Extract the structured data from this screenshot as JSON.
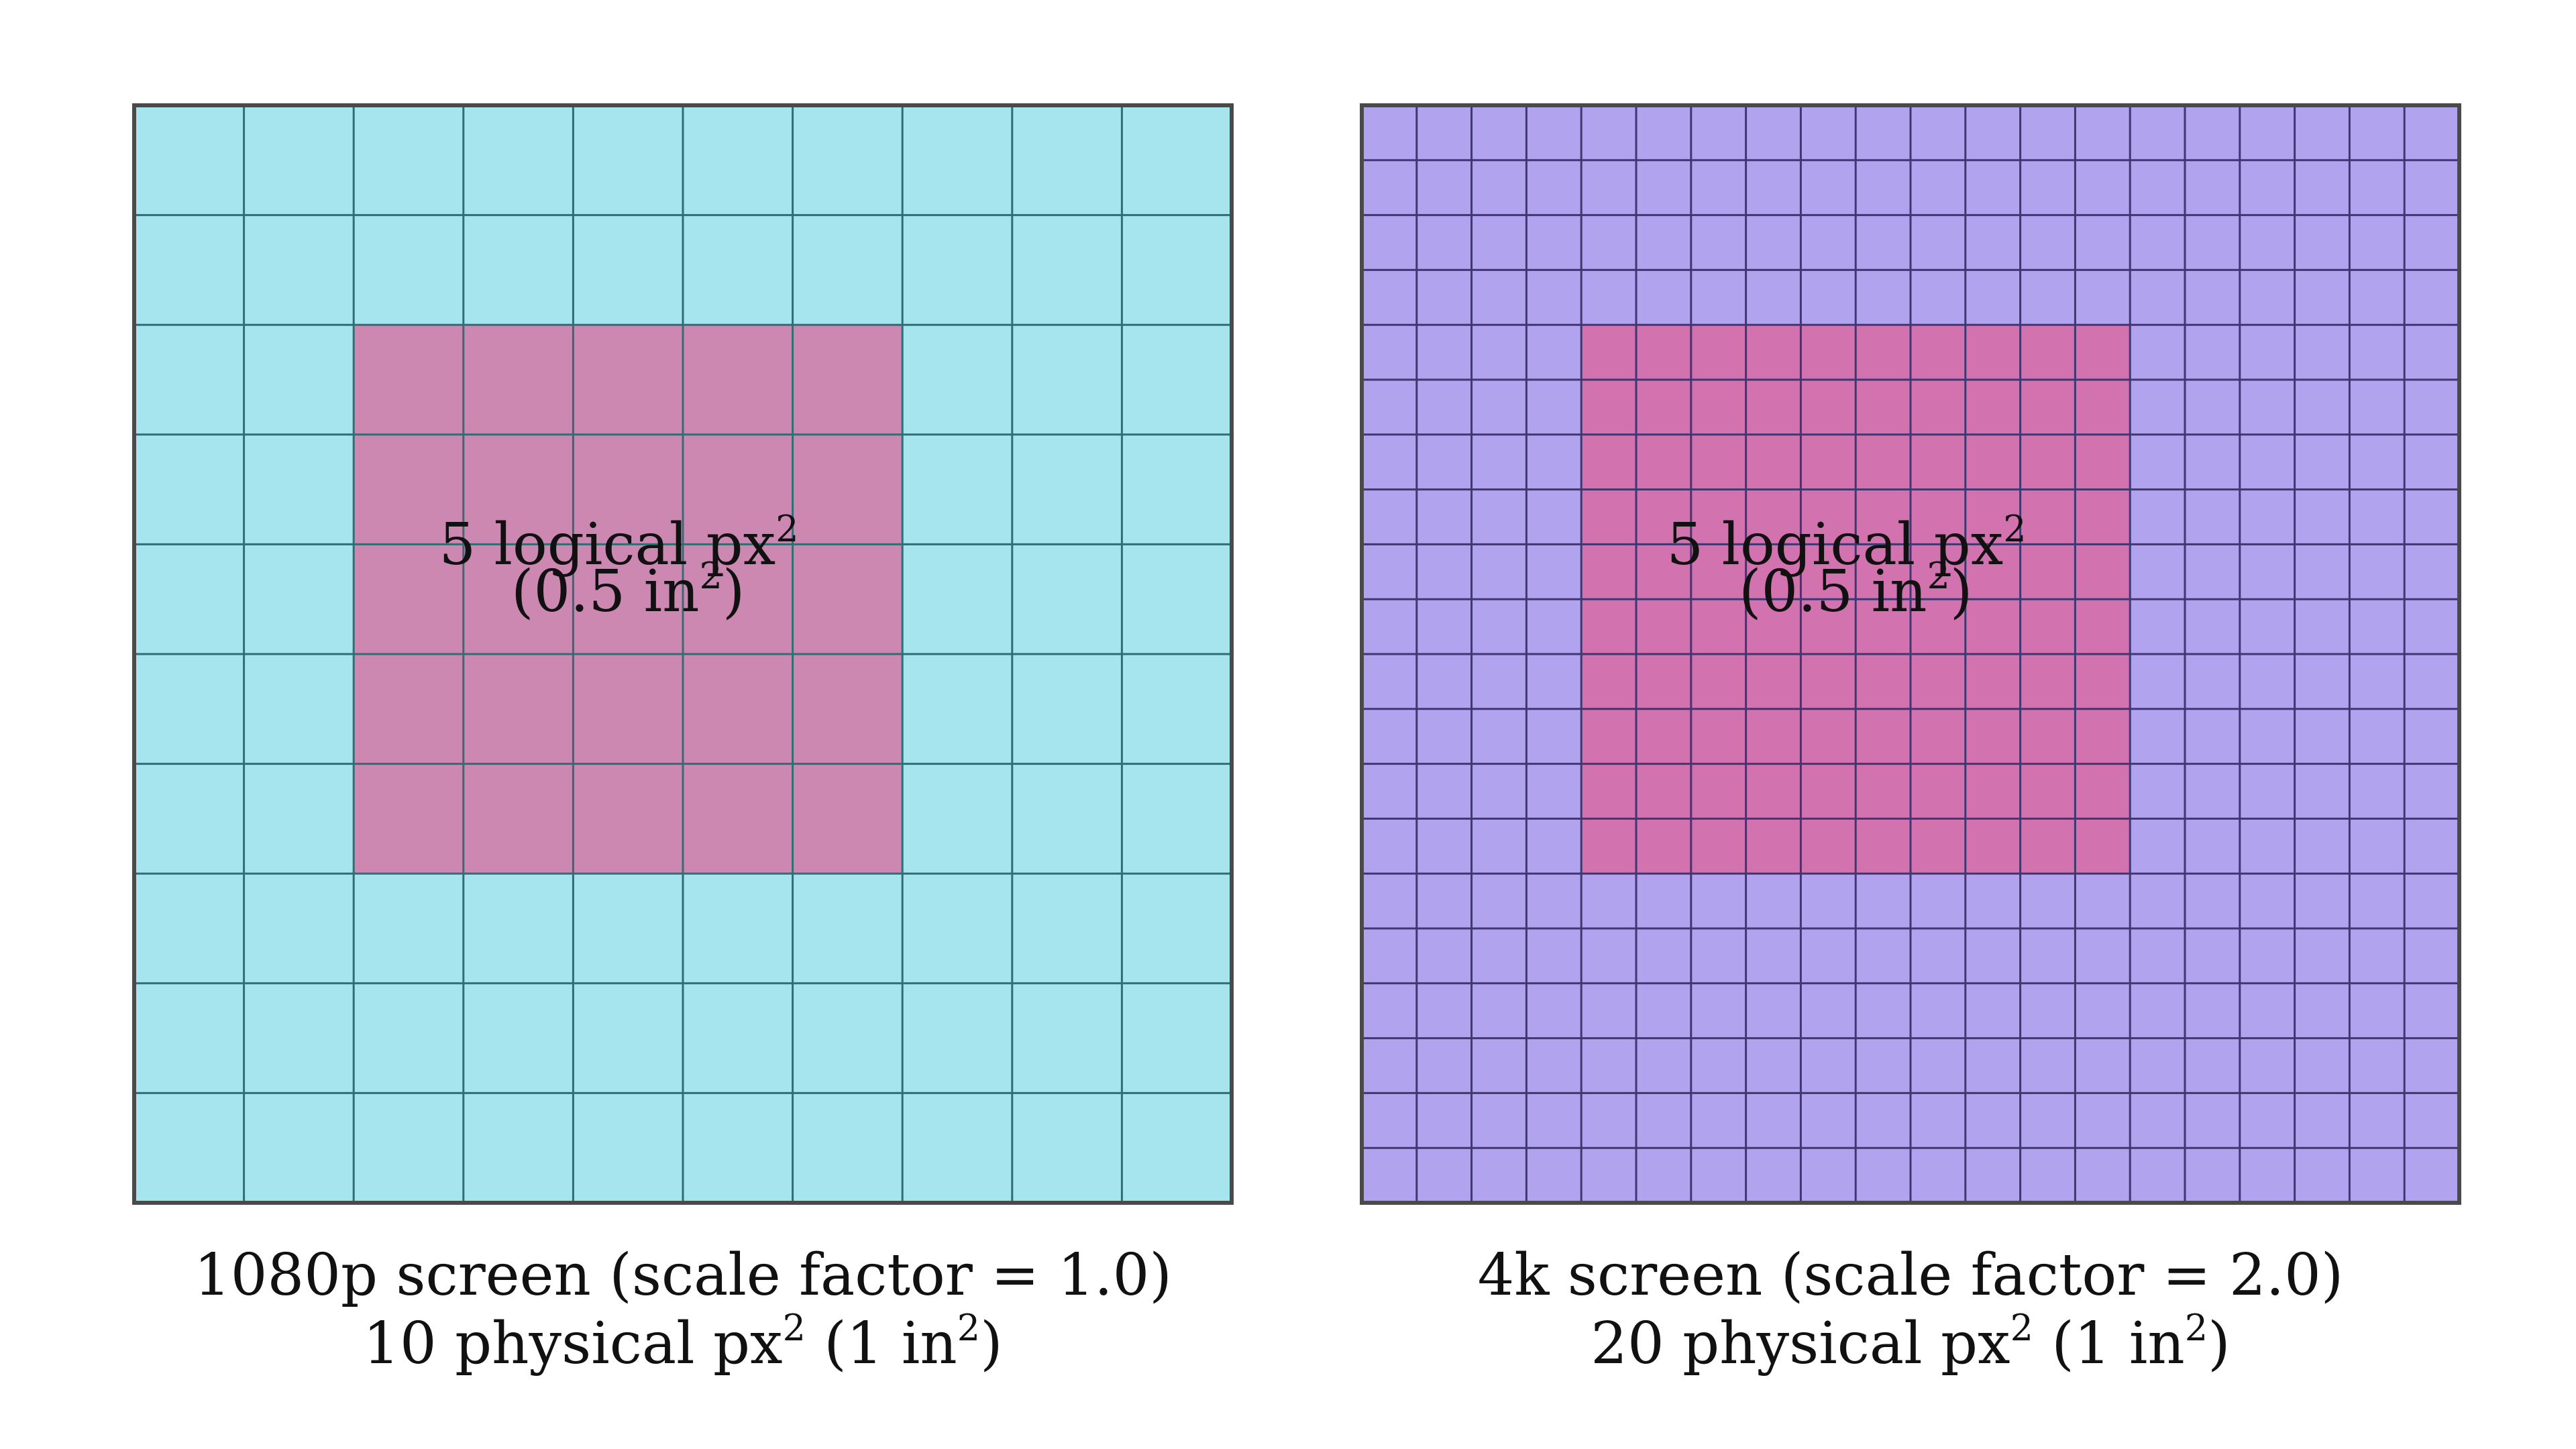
{
  "panels": [
    {
      "id": "1080p",
      "grid_divisions": 10,
      "highlight": {
        "start": 2,
        "size": 5
      },
      "colors": {
        "background": "#a6e4ee",
        "highlight": "#cd88b2",
        "grid_line": "#2e6e74",
        "border": "#4a4a4a"
      },
      "label_line1": "5 logical px",
      "label_sup1": "2",
      "label_line2_pre": "(0.5 in",
      "label_sup2": "2",
      "label_line2_post": ")",
      "caption_line1": "1080p screen (scale factor = 1.0)",
      "caption_line2_pre": "10 physical px",
      "caption_sup_a": "2",
      "caption_line2_mid": " (1 in",
      "caption_sup_b": "2",
      "caption_line2_post": ")"
    },
    {
      "id": "4k",
      "grid_divisions": 20,
      "highlight": {
        "start": 4,
        "size": 10
      },
      "colors": {
        "background": "#b2a3ef",
        "highlight": "#d272ae",
        "grid_line": "#3f3772",
        "border": "#4a4a4a"
      },
      "label_line1": "5 logical px",
      "label_sup1": "2",
      "label_line2_pre": "(0.5 in",
      "label_sup2": "2",
      "label_line2_post": ")",
      "caption_line1": "4k screen (scale factor = 2.0)",
      "caption_line2_pre": "20 physical px",
      "caption_sup_a": "2",
      "caption_line2_mid": " (1 in",
      "caption_sup_b": "2",
      "caption_line2_post": ")"
    }
  ]
}
